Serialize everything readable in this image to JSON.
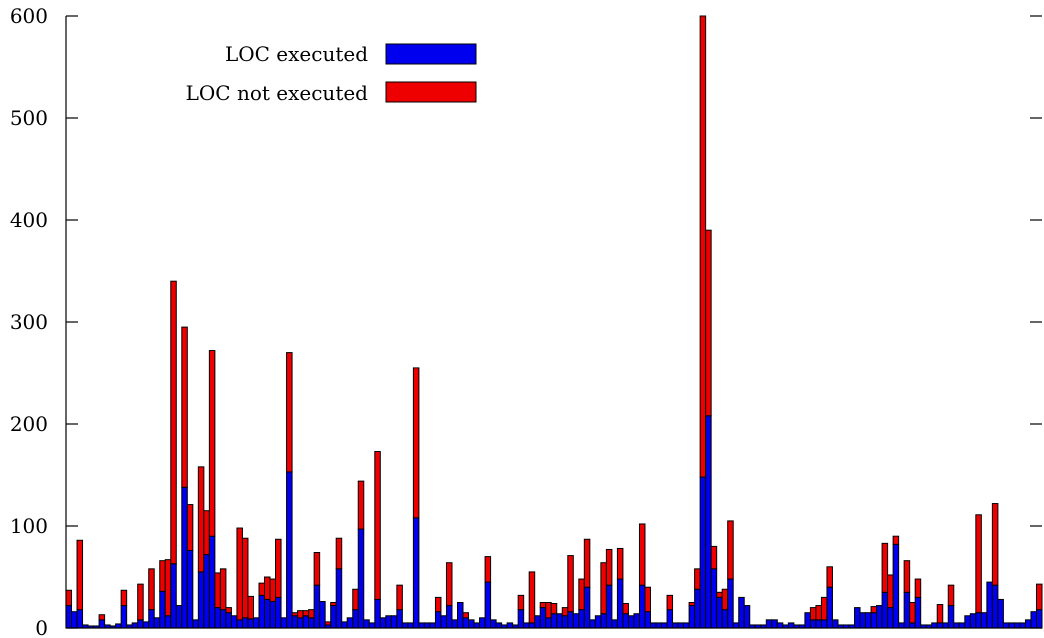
{
  "chart_data": {
    "type": "bar",
    "stacked": true,
    "title": "",
    "xlabel": "",
    "ylabel": "",
    "ylim": [
      0,
      600
    ],
    "yticks": [
      0,
      100,
      200,
      300,
      400,
      500,
      600
    ],
    "ytick_labels": [
      "0",
      "100",
      "200",
      "300",
      "400",
      "500",
      "600"
    ],
    "grid": false,
    "legend_position": "top-left",
    "series": [
      {
        "name": "LOC executed",
        "color": "#0000ee",
        "values": [
          22,
          16,
          18,
          3,
          2,
          2,
          8,
          3,
          2,
          4,
          22,
          3,
          5,
          8,
          6,
          18,
          10,
          36,
          12,
          63,
          22,
          138,
          76,
          8,
          55,
          72,
          90,
          20,
          18,
          15,
          12,
          8,
          10,
          9,
          10,
          32,
          28,
          26,
          30,
          10,
          153,
          12,
          10,
          12,
          10,
          42,
          26,
          3,
          22,
          58,
          6,
          10,
          18,
          97,
          8,
          5,
          28,
          10,
          12,
          12,
          18,
          5,
          5,
          108,
          5,
          5,
          5,
          16,
          12,
          22,
          8,
          25,
          10,
          8,
          5,
          10,
          45,
          8,
          5,
          3,
          5,
          3,
          18,
          5,
          5,
          12,
          20,
          10,
          14,
          14,
          12,
          16,
          14,
          18,
          40,
          8,
          12,
          14,
          42,
          8,
          48,
          14,
          12,
          14,
          42,
          16,
          5,
          5,
          5,
          18,
          5,
          5,
          5,
          22,
          38,
          148,
          208,
          58,
          30,
          18,
          48,
          5,
          30,
          22,
          3,
          3,
          3,
          8,
          8,
          5,
          3,
          5,
          3,
          3,
          15,
          8,
          8,
          8,
          40,
          8,
          3,
          3,
          3,
          20,
          15,
          15,
          15,
          22,
          35,
          20,
          82,
          5,
          35,
          5,
          30,
          3,
          3,
          5,
          5,
          5,
          22,
          5,
          5,
          12,
          14,
          15,
          15,
          45,
          42,
          28,
          5,
          5,
          5,
          5,
          8,
          16,
          18
        ]
      },
      {
        "name": "LOC not executed",
        "color": "#ee0000",
        "values": [
          15,
          0,
          68,
          0,
          0,
          0,
          5,
          0,
          0,
          0,
          15,
          0,
          0,
          35,
          0,
          40,
          0,
          30,
          55,
          277,
          0,
          157,
          45,
          0,
          103,
          43,
          182,
          34,
          40,
          5,
          0,
          90,
          78,
          22,
          0,
          12,
          22,
          22,
          57,
          0,
          117,
          3,
          7,
          5,
          8,
          32,
          0,
          3,
          3,
          30,
          0,
          0,
          20,
          47,
          0,
          0,
          145,
          0,
          0,
          0,
          24,
          0,
          0,
          147,
          0,
          0,
          0,
          14,
          0,
          42,
          0,
          0,
          5,
          0,
          0,
          0,
          25,
          0,
          0,
          0,
          0,
          0,
          14,
          0,
          50,
          0,
          5,
          15,
          10,
          0,
          8,
          55,
          0,
          30,
          47,
          0,
          0,
          50,
          35,
          0,
          30,
          10,
          0,
          0,
          60,
          24,
          0,
          0,
          0,
          14,
          0,
          0,
          0,
          3,
          20,
          452,
          182,
          22,
          5,
          20,
          57,
          0,
          0,
          0,
          0,
          0,
          0,
          0,
          0,
          0,
          0,
          0,
          0,
          0,
          0,
          12,
          14,
          22,
          20,
          0,
          0,
          0,
          0,
          0,
          0,
          0,
          6,
          0,
          48,
          32,
          8,
          0,
          31,
          20,
          18,
          0,
          0,
          0,
          18,
          0,
          20,
          0,
          0,
          0,
          0,
          96,
          0,
          0,
          80,
          0,
          0,
          0,
          0,
          0,
          0,
          0,
          25,
          22
        ]
      }
    ]
  },
  "legend": {
    "items": [
      {
        "label": "LOC executed",
        "color": "#0000ee"
      },
      {
        "label": "LOC not executed",
        "color": "#ee0000"
      }
    ]
  }
}
